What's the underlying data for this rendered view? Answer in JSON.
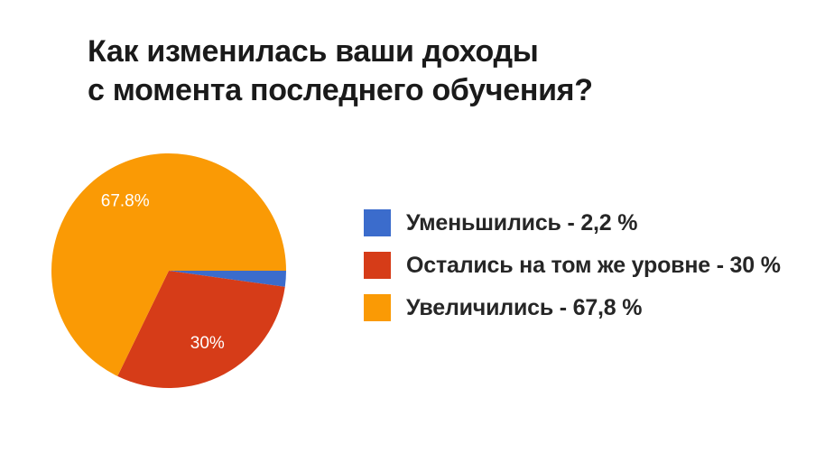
{
  "title": {
    "line1": "Как изменилась ваши доходы",
    "line2": "с момента последнего обучения?"
  },
  "legend": {
    "items": [
      {
        "label": "Уменьшились - 2,2 %",
        "color": "#3B6CCC"
      },
      {
        "label": "Остались на том же уровне - 30 %",
        "color": "#D63C18"
      },
      {
        "label": "Увеличились - 67,8 %",
        "color": "#FA9A05"
      }
    ]
  },
  "chart_data": {
    "type": "pie",
    "title": "Как изменилась ваши доходы с момента последнего обучения?",
    "categories": [
      "Уменьшились",
      "Остались на том же уровне",
      "Увеличились"
    ],
    "values": [
      2.2,
      30,
      67.8
    ],
    "colors": [
      "#3B6CCC",
      "#D63C18",
      "#FA9A05"
    ],
    "slice_labels": [
      "",
      "30%",
      "67.8%"
    ],
    "slice_names": [
      "pie-slice-decreased",
      "pie-slice-same-level",
      "pie-slice-increased"
    ],
    "start_angle_deg": 0,
    "direction": "clockwise",
    "label_color": "#FFFFFF",
    "label_radius_ratio": 0.7,
    "legend_position": "right",
    "background": "#FFFFFF"
  }
}
